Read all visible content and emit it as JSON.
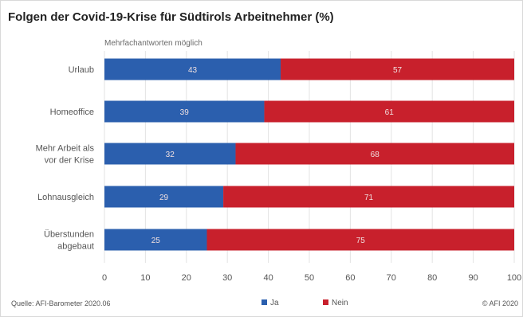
{
  "chart_data": {
    "type": "bar",
    "stacked": true,
    "orientation": "horizontal",
    "title": "Folgen der Covid-19-Krise für Südtirols Arbeitnehmer (%)",
    "subtitle": "Mehrfachantworten möglich",
    "categories": [
      [
        "Urlaub"
      ],
      [
        "Homeoffice"
      ],
      [
        "Mehr Arbeit als",
        "vor der Krise"
      ],
      [
        "Lohnausgleich"
      ],
      [
        "Überstunden",
        "abgebaut"
      ]
    ],
    "series": [
      {
        "name": "Ja",
        "values": [
          43,
          39,
          32,
          29,
          25
        ],
        "color": "#2b5fae"
      },
      {
        "name": "Nein",
        "values": [
          57,
          61,
          68,
          71,
          75
        ],
        "color": "#c8202c"
      }
    ],
    "xlim": [
      0,
      100
    ],
    "xticks": [
      0,
      10,
      20,
      30,
      40,
      50,
      60,
      70,
      80,
      90,
      100
    ],
    "grid": "vertical",
    "legend": "bottom-center",
    "source": "Quelle: AFI-Barometer 2020.06",
    "copyright": "© AFI 2020"
  }
}
